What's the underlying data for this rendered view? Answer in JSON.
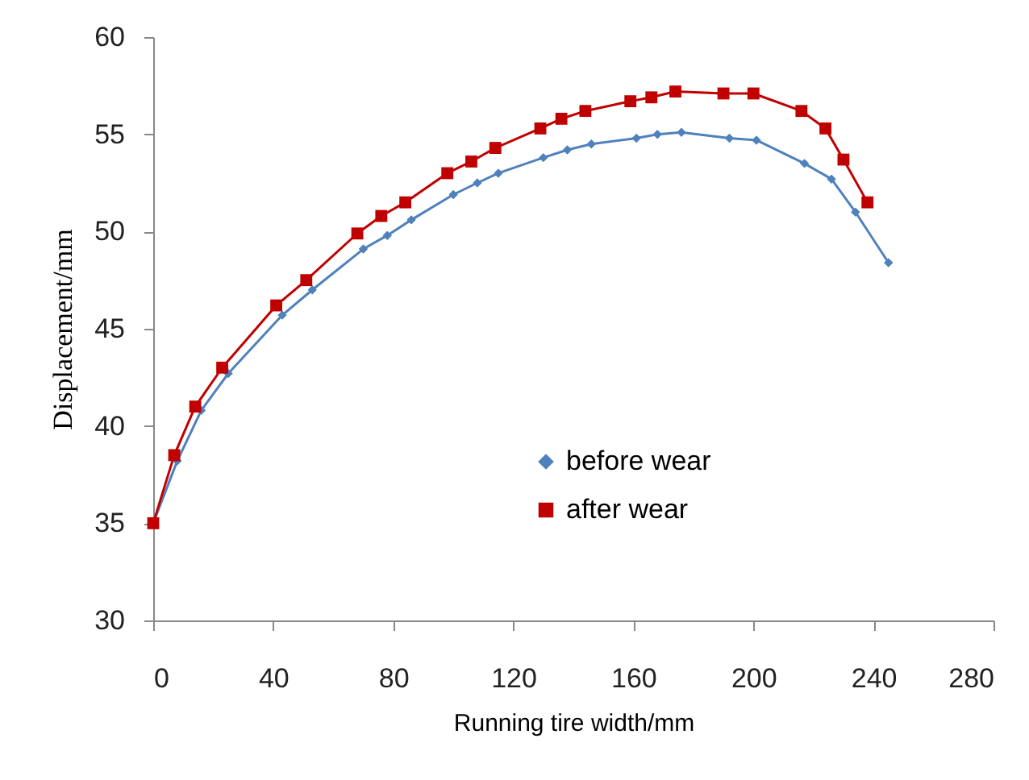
{
  "chart_data": {
    "type": "line",
    "xlabel": "Running tire width/mm",
    "ylabel": "Displacement/mm",
    "xlim": [
      0,
      280
    ],
    "xticks": [
      0,
      40,
      80,
      120,
      160,
      200,
      240,
      280
    ],
    "ylim": [
      30,
      60
    ],
    "yticks": [
      30,
      35,
      40,
      45,
      50,
      55,
      60
    ],
    "grid": false,
    "legend": "center",
    "line_style": "solid",
    "series": [
      {
        "name": "before wear",
        "color": "#4f81bd",
        "marker": "diamond",
        "x": [
          0,
          8,
          16,
          25,
          43,
          53,
          70,
          78,
          86,
          100,
          108,
          115,
          130,
          138,
          146,
          161,
          168,
          176,
          192,
          201,
          217,
          226,
          234,
          245
        ],
        "values": [
          35,
          38.2,
          40.8,
          42.7,
          45.7,
          47,
          49.1,
          49.8,
          50.6,
          51.9,
          52.5,
          53,
          53.8,
          54.2,
          54.5,
          54.8,
          55,
          55.1,
          54.8,
          54.7,
          53.5,
          52.7,
          51,
          48.4
        ]
      },
      {
        "name": "after wear",
        "color": "#c00000",
        "marker": "square",
        "x": [
          0,
          7,
          14,
          23,
          41,
          51,
          68,
          76,
          84,
          98,
          106,
          114,
          129,
          136,
          144,
          159,
          166,
          174,
          190,
          200,
          216,
          224,
          230,
          238
        ],
        "values": [
          35,
          38.5,
          41,
          43,
          46.2,
          47.5,
          49.9,
          50.8,
          51.5,
          53,
          53.6,
          54.3,
          55.3,
          55.8,
          56.2,
          56.7,
          56.9,
          57.2,
          57.1,
          57.1,
          56.2,
          55.3,
          53.7,
          51.5
        ]
      }
    ]
  }
}
